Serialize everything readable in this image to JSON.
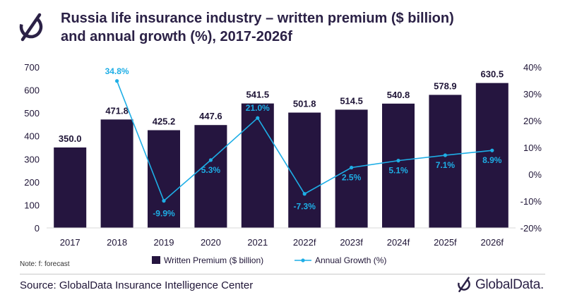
{
  "header": {
    "title_line1": "Russia life insurance industry – written premium ($ billion)",
    "title_line2": "and annual growth (%), 2017-2026f"
  },
  "chart_data": {
    "type": "bar",
    "categories": [
      "2017",
      "2018",
      "2019",
      "2020",
      "2021",
      "2022f",
      "2023f",
      "2024f",
      "2025f",
      "2026f"
    ],
    "series": [
      {
        "name": "Written Premium ($ billion)",
        "type": "bar",
        "axis": "left",
        "values": [
          350.0,
          471.8,
          425.2,
          447.6,
          541.5,
          501.8,
          514.5,
          540.8,
          578.9,
          630.5
        ],
        "labels": [
          "350.0",
          "471.8",
          "425.2",
          "447.6",
          "541.5",
          "501.8",
          "514.5",
          "540.8",
          "578.9",
          "630.5"
        ],
        "color": "#25153f"
      },
      {
        "name": "Annual Growth (%)",
        "type": "line",
        "axis": "right",
        "values": [
          null,
          34.8,
          -9.9,
          5.3,
          21.0,
          -7.3,
          2.5,
          5.1,
          7.1,
          8.9
        ],
        "labels": [
          "",
          "34.8%",
          "-9.9%",
          "5.3%",
          "21.0%",
          "-7.3%",
          "2.5%",
          "5.1%",
          "7.1%",
          "8.9%"
        ],
        "color": "#1eaee6"
      }
    ],
    "y_left": {
      "lim": [
        0,
        700
      ],
      "ticks": [
        "0",
        "100",
        "200",
        "300",
        "400",
        "500",
        "600",
        "700"
      ]
    },
    "y_right": {
      "lim": [
        -20,
        40
      ],
      "ticks": [
        "-20%",
        "-10%",
        "0%",
        "10%",
        "20%",
        "30%",
        "40%"
      ]
    },
    "grid": false,
    "legend": "bottom"
  },
  "footer": {
    "note": "Note: f: forecast",
    "source": "Source: GlobalData Insurance Intelligence Center",
    "brand": "GlobalData."
  },
  "colors": {
    "bar": "#25153f",
    "line": "#1eaee6",
    "text": "#1f1537"
  },
  "icons": {
    "header_logo": "globaldata-logo-icon",
    "footer_logo": "globaldata-logo-icon"
  }
}
